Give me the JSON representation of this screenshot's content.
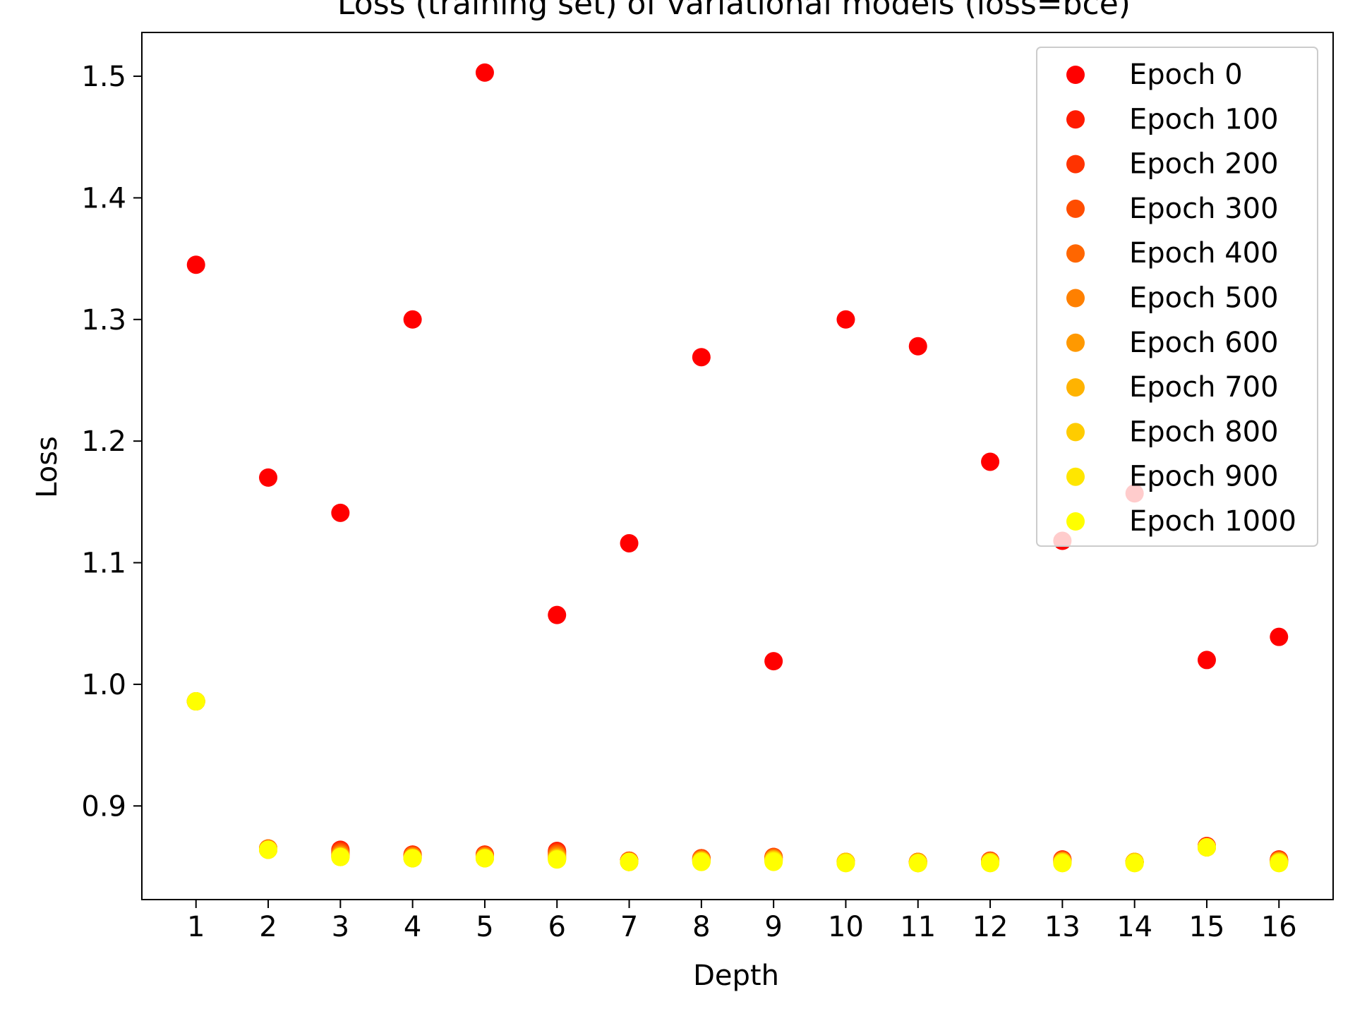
{
  "chart_data": {
    "type": "scatter",
    "title": "Loss (training set) of variational models (loss=bce)",
    "xlabel": "Depth",
    "ylabel": "Loss",
    "x": [
      1,
      2,
      3,
      4,
      5,
      6,
      7,
      8,
      9,
      10,
      11,
      12,
      13,
      14,
      15,
      16
    ],
    "xlim": [
      0.25,
      16.75
    ],
    "ylim": [
      0.823,
      1.536
    ],
    "yticks": [
      "0.9",
      "1.0",
      "1.1",
      "1.2",
      "1.3",
      "1.4",
      "1.5"
    ],
    "xticks": [
      "1",
      "2",
      "3",
      "4",
      "5",
      "6",
      "7",
      "8",
      "9",
      "10",
      "11",
      "12",
      "13",
      "14",
      "15",
      "16"
    ],
    "grid": false,
    "legend_position": "top-right",
    "series": [
      {
        "name": "Epoch 0",
        "color": "#ff0000",
        "values": [
          1.345,
          1.17,
          1.141,
          1.3,
          1.503,
          1.057,
          1.116,
          1.269,
          1.019,
          1.3,
          1.278,
          1.183,
          1.118,
          1.157,
          1.02,
          1.039
        ]
      },
      {
        "name": "Epoch 100",
        "color": "#ff1a00",
        "values": [
          0.986,
          0.865,
          0.864,
          0.86,
          0.86,
          0.863,
          0.855,
          0.857,
          0.858,
          0.854,
          0.854,
          0.855,
          0.856,
          0.854,
          0.867,
          0.856
        ]
      },
      {
        "name": "Epoch 200",
        "color": "#ff3300",
        "values": [
          0.986,
          0.865,
          0.863,
          0.86,
          0.86,
          0.862,
          0.855,
          0.857,
          0.858,
          0.854,
          0.854,
          0.855,
          0.856,
          0.854,
          0.867,
          0.856
        ]
      },
      {
        "name": "Epoch 300",
        "color": "#ff4d00",
        "values": [
          0.986,
          0.865,
          0.862,
          0.859,
          0.859,
          0.861,
          0.855,
          0.857,
          0.858,
          0.854,
          0.854,
          0.855,
          0.855,
          0.854,
          0.866,
          0.855
        ]
      },
      {
        "name": "Epoch 400",
        "color": "#ff6600",
        "values": [
          0.986,
          0.865,
          0.861,
          0.859,
          0.859,
          0.86,
          0.855,
          0.856,
          0.857,
          0.854,
          0.854,
          0.854,
          0.855,
          0.854,
          0.866,
          0.855
        ]
      },
      {
        "name": "Epoch 500",
        "color": "#ff8000",
        "values": [
          0.986,
          0.865,
          0.86,
          0.858,
          0.858,
          0.859,
          0.854,
          0.856,
          0.857,
          0.854,
          0.854,
          0.854,
          0.855,
          0.854,
          0.866,
          0.855
        ]
      },
      {
        "name": "Epoch 600",
        "color": "#ff9900",
        "values": [
          0.986,
          0.864,
          0.859,
          0.858,
          0.858,
          0.858,
          0.854,
          0.855,
          0.856,
          0.854,
          0.854,
          0.854,
          0.854,
          0.854,
          0.866,
          0.854
        ]
      },
      {
        "name": "Epoch 700",
        "color": "#ffb300",
        "values": [
          0.986,
          0.864,
          0.859,
          0.857,
          0.857,
          0.857,
          0.854,
          0.855,
          0.856,
          0.854,
          0.853,
          0.854,
          0.854,
          0.854,
          0.866,
          0.854
        ]
      },
      {
        "name": "Epoch 800",
        "color": "#ffcc00",
        "values": [
          0.986,
          0.864,
          0.858,
          0.857,
          0.857,
          0.857,
          0.854,
          0.855,
          0.855,
          0.854,
          0.853,
          0.854,
          0.854,
          0.854,
          0.866,
          0.854
        ]
      },
      {
        "name": "Epoch 900",
        "color": "#ffe600",
        "values": [
          0.986,
          0.864,
          0.858,
          0.857,
          0.857,
          0.856,
          0.854,
          0.854,
          0.855,
          0.853,
          0.853,
          0.853,
          0.853,
          0.853,
          0.866,
          0.853
        ]
      },
      {
        "name": "Epoch 1000",
        "color": "#ffff00",
        "values": [
          0.986,
          0.864,
          0.858,
          0.857,
          0.857,
          0.856,
          0.854,
          0.854,
          0.854,
          0.853,
          0.853,
          0.853,
          0.853,
          0.853,
          0.866,
          0.853
        ]
      }
    ]
  }
}
